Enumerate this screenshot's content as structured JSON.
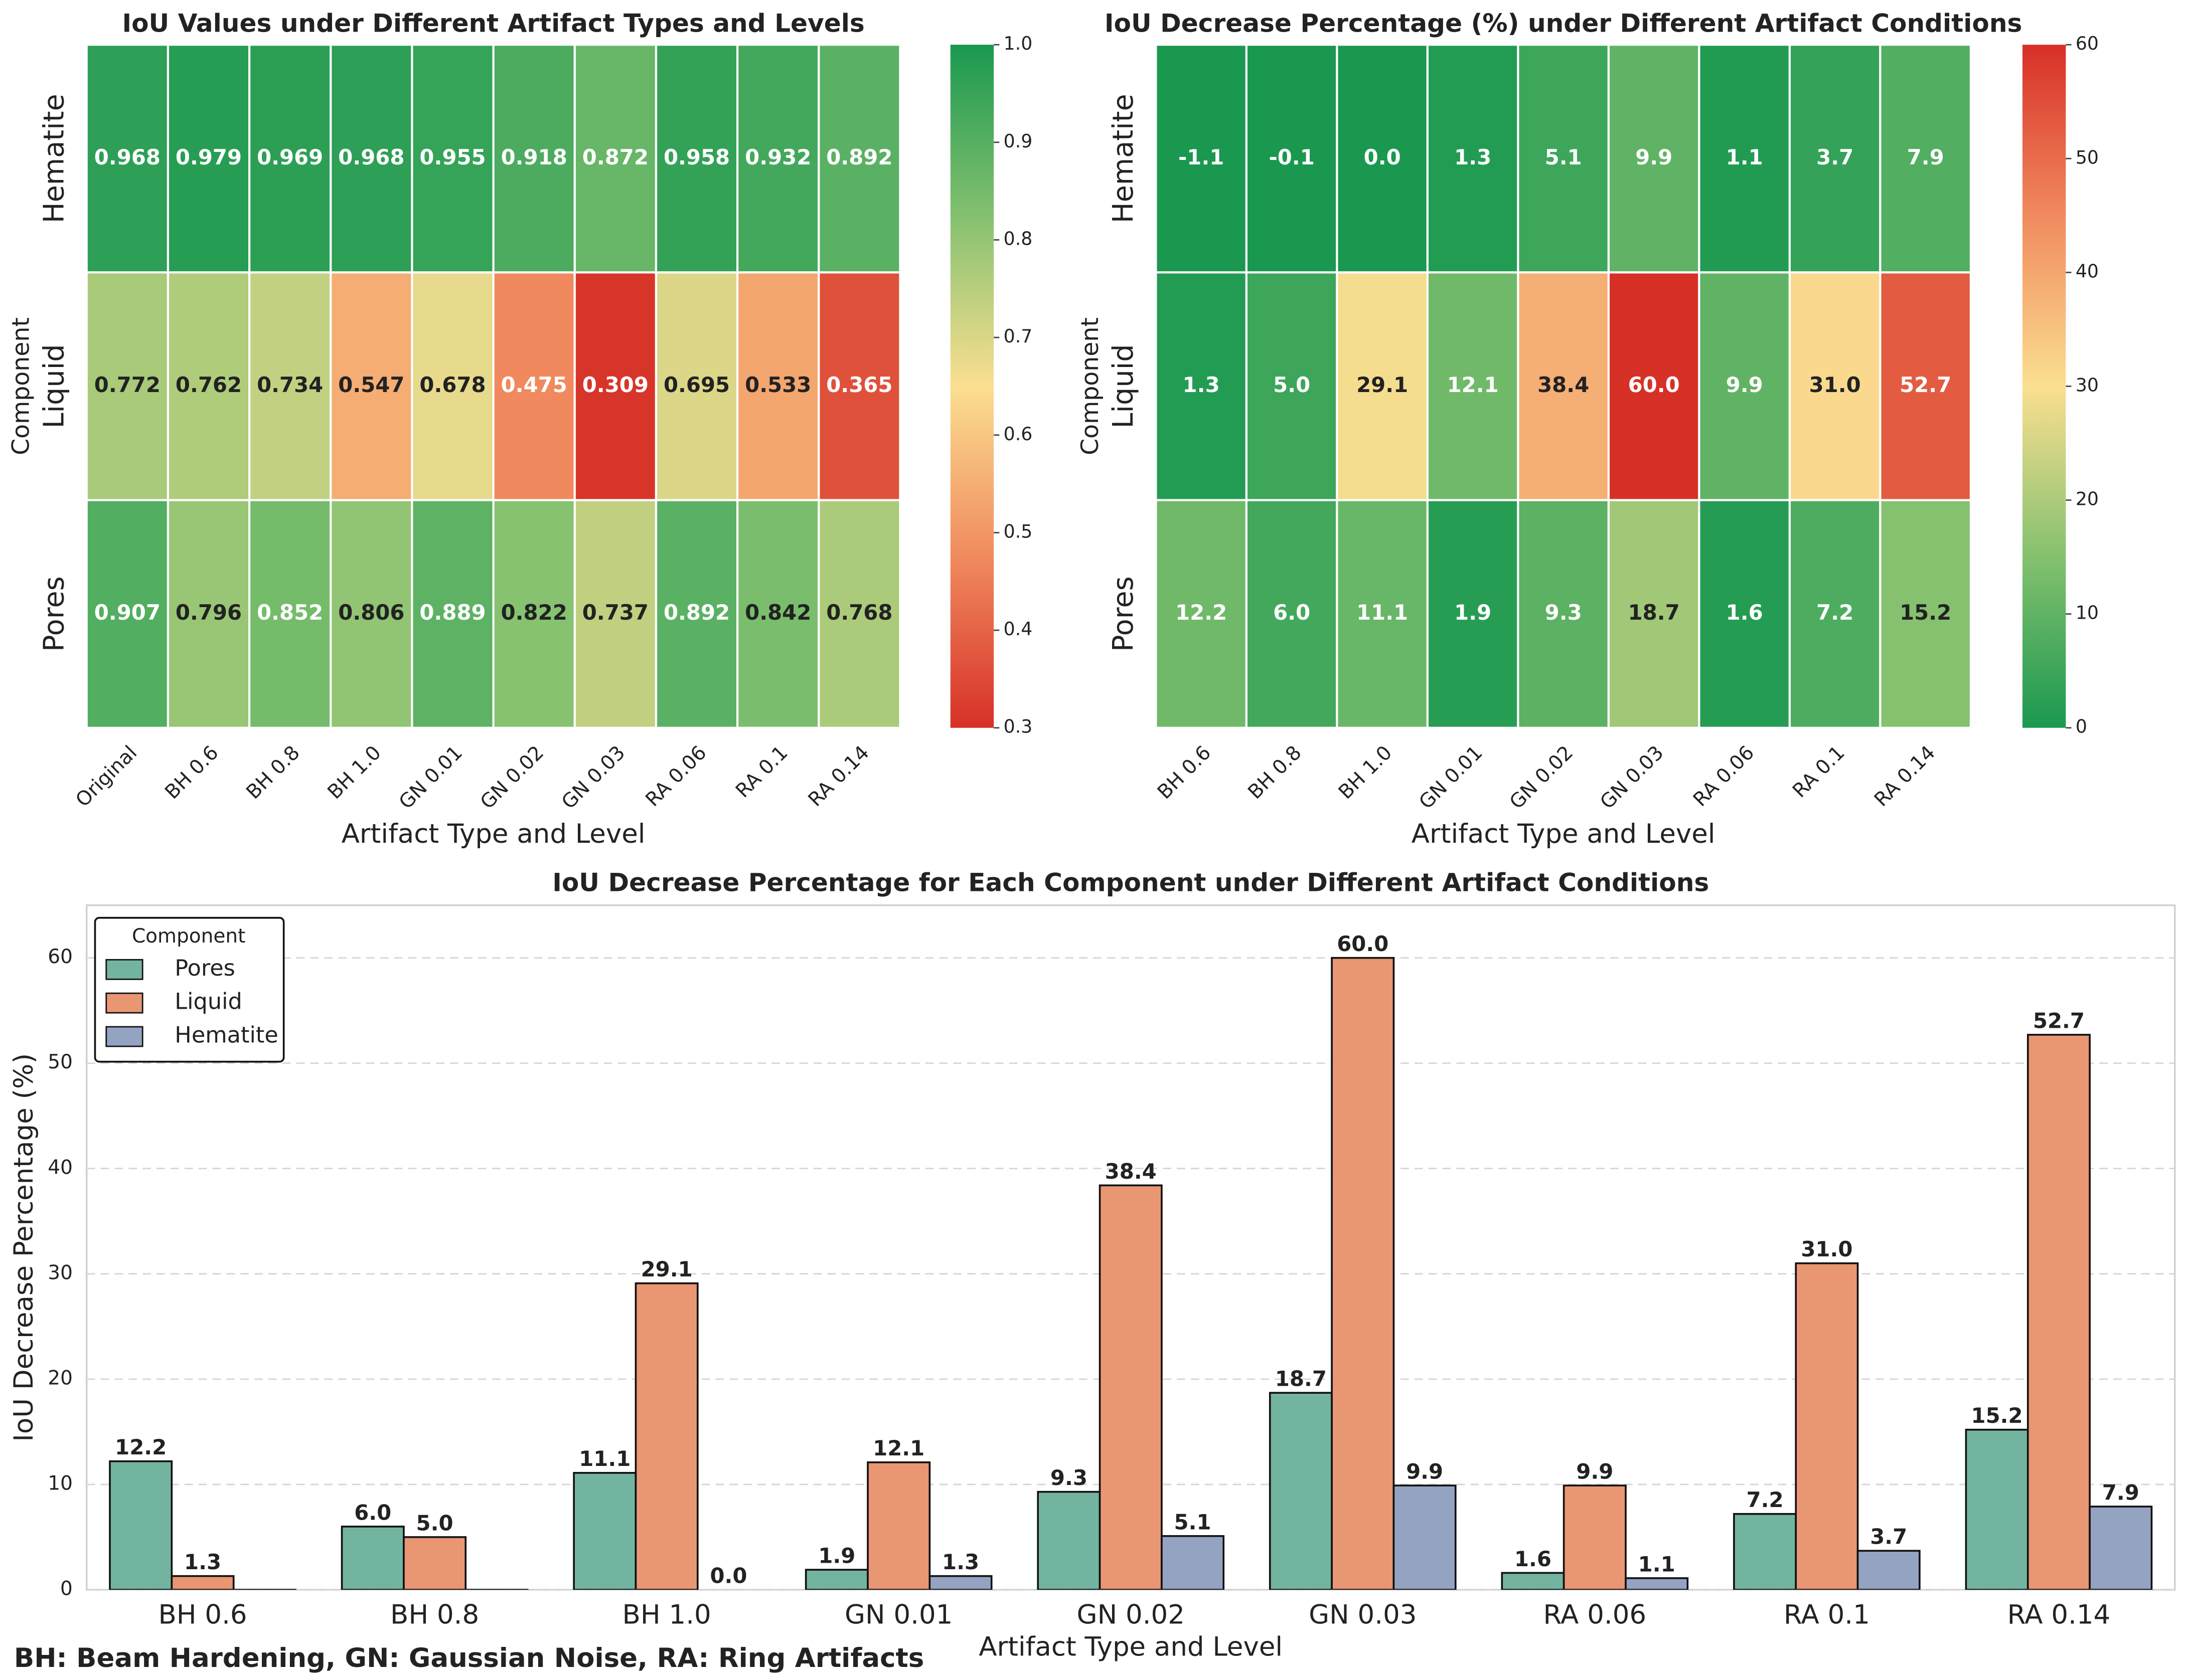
{
  "chart_data": [
    {
      "type": "heatmap",
      "title": "IoU Values under Different Artifact Types and Levels",
      "x_categories": [
        "Original",
        "BH 0.6",
        "BH 0.8",
        "BH 1.0",
        "GN 0.01",
        "GN 0.02",
        "GN 0.03",
        "RA 0.06",
        "RA 0.1",
        "RA 0.14"
      ],
      "y_categories": [
        "Hematite",
        "Liquid",
        "Pores"
      ],
      "values": [
        [
          0.968,
          0.979,
          0.969,
          0.968,
          0.955,
          0.918,
          0.872,
          0.958,
          0.932,
          0.892
        ],
        [
          0.772,
          0.762,
          0.734,
          0.547,
          0.678,
          0.475,
          0.309,
          0.695,
          0.533,
          0.365
        ],
        [
          0.907,
          0.796,
          0.852,
          0.806,
          0.889,
          0.822,
          0.737,
          0.892,
          0.842,
          0.768
        ]
      ],
      "xlabel": "Artifact Type and Level",
      "ylabel": "Component",
      "zlim": [
        0.3,
        1.0
      ],
      "zticks": [
        0.3,
        0.4,
        0.5,
        0.6,
        0.7,
        0.8,
        0.9,
        {
          "value": 1.0,
          "label": "1.0"
        }
      ],
      "cmap": [
        "#d73027",
        "#f08a5e",
        "#fbdf91",
        "#84c16f",
        "#1a9850"
      ]
    },
    {
      "type": "heatmap",
      "title": "IoU Decrease Percentage (%) under Different Artifact Conditions",
      "x_categories": [
        "BH 0.6",
        "BH 0.8",
        "BH 1.0",
        "GN 0.01",
        "GN 0.02",
        "GN 0.03",
        "RA 0.06",
        "RA 0.1",
        "RA 0.14"
      ],
      "y_categories": [
        "Hematite",
        "Liquid",
        "Pores"
      ],
      "values": [
        [
          -1.1,
          -0.1,
          0.0,
          1.3,
          5.1,
          9.9,
          1.1,
          3.7,
          7.9
        ],
        [
          1.3,
          5.0,
          29.1,
          12.1,
          38.4,
          60.0,
          9.9,
          31.0,
          52.7
        ],
        [
          12.2,
          6.0,
          11.1,
          1.9,
          9.3,
          18.7,
          1.6,
          7.2,
          15.2
        ]
      ],
      "value_labels": [
        [
          "-1.1",
          "-0.1",
          "0.0",
          "1.3",
          "5.1",
          "9.9",
          "1.1",
          "3.7",
          "7.9"
        ],
        [
          "1.3",
          "5.0",
          "29.1",
          "12.1",
          "38.4",
          "60.0",
          "9.9",
          "31.0",
          "52.7"
        ],
        [
          "12.2",
          "6.0",
          "11.1",
          "1.9",
          "9.3",
          "18.7",
          "1.6",
          "7.2",
          "15.2"
        ]
      ],
      "xlabel": "Artifact Type and Level",
      "ylabel": "Component",
      "zlim": [
        0,
        60
      ],
      "zticks": [
        0,
        10,
        20,
        30,
        40,
        50,
        60
      ],
      "cmap": [
        "#1a9850",
        "#84c16f",
        "#fbdf91",
        "#f08a5e",
        "#d73027"
      ]
    },
    {
      "type": "bar",
      "title": "IoU Decrease Percentage for Each Component under Different Artifact Conditions",
      "categories": [
        "BH 0.6",
        "BH 0.8",
        "BH 1.0",
        "GN 0.01",
        "GN 0.02",
        "GN 0.03",
        "RA 0.06",
        "RA 0.1",
        "RA 0.14"
      ],
      "series": [
        {
          "name": "Pores",
          "color": "#73b4a0",
          "values": [
            12.2,
            6.0,
            11.1,
            1.9,
            9.3,
            18.7,
            1.6,
            7.2,
            15.2
          ],
          "value_labels": [
            "12.2",
            "6.0",
            "11.1",
            "1.9",
            "9.3",
            "18.7",
            "1.6",
            "7.2",
            "15.2"
          ]
        },
        {
          "name": "Liquid",
          "color": "#e99673",
          "values": [
            1.3,
            5.0,
            29.1,
            12.1,
            38.4,
            60.0,
            9.9,
            31.0,
            52.7
          ],
          "value_labels": [
            "1.3",
            "5.0",
            "29.1",
            "12.1",
            "38.4",
            "60.0",
            "9.9",
            "31.0",
            "52.7"
          ]
        },
        {
          "name": "Hematite",
          "color": "#95a3c3",
          "values": [
            -1.1,
            -0.1,
            0.0,
            1.3,
            5.1,
            9.9,
            1.1,
            3.7,
            7.9
          ],
          "value_labels": [
            null,
            null,
            "0.0",
            "1.3",
            "5.1",
            "9.9",
            "1.1",
            "3.7",
            "7.9"
          ]
        }
      ],
      "xlabel": "Artifact Type and Level",
      "ylabel": "IoU Decrease Percentage (%)",
      "ylim": [
        0,
        65
      ],
      "yticks": [
        0,
        10,
        20,
        30,
        40,
        50,
        60
      ],
      "grid": true,
      "legend_title": "Component",
      "legend": "upper left",
      "footnote": "BH: Beam Hardening, GN: Gaussian Noise, RA: Ring Artifacts"
    }
  ]
}
